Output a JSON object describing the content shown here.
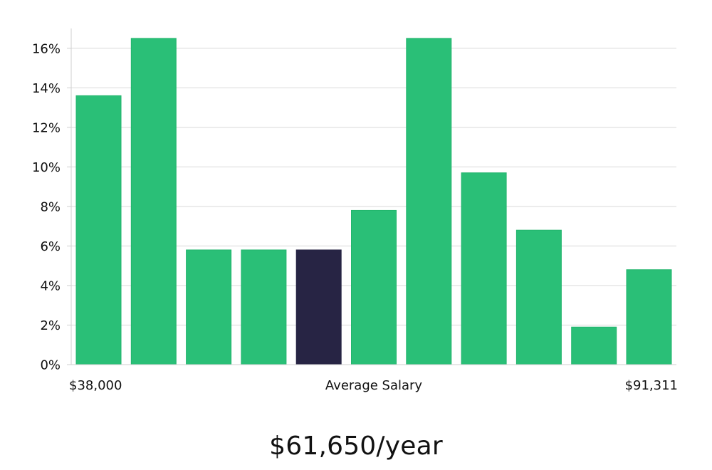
{
  "chart_data": {
    "type": "bar",
    "title": "",
    "xlabel": "Average Salary",
    "ylabel": "",
    "ylim": [
      0,
      17
    ],
    "yticks": [
      0,
      2,
      4,
      6,
      8,
      10,
      12,
      14,
      16
    ],
    "ytick_suffix": "%",
    "x_range_labels": {
      "min": "$38,000",
      "max": "$91,311"
    },
    "values": [
      13.6,
      16.5,
      5.8,
      5.8,
      5.8,
      7.8,
      16.5,
      9.7,
      6.8,
      1.9,
      4.8
    ],
    "highlight_index": 4,
    "grid": true,
    "colors": {
      "bar": "#2abf77",
      "bar_stroke": "#22b56d",
      "highlight": "#272444",
      "grid": "#d9d9d9",
      "axis": "#cfcfcf"
    }
  },
  "summary": {
    "salary": "$61,650/year"
  }
}
